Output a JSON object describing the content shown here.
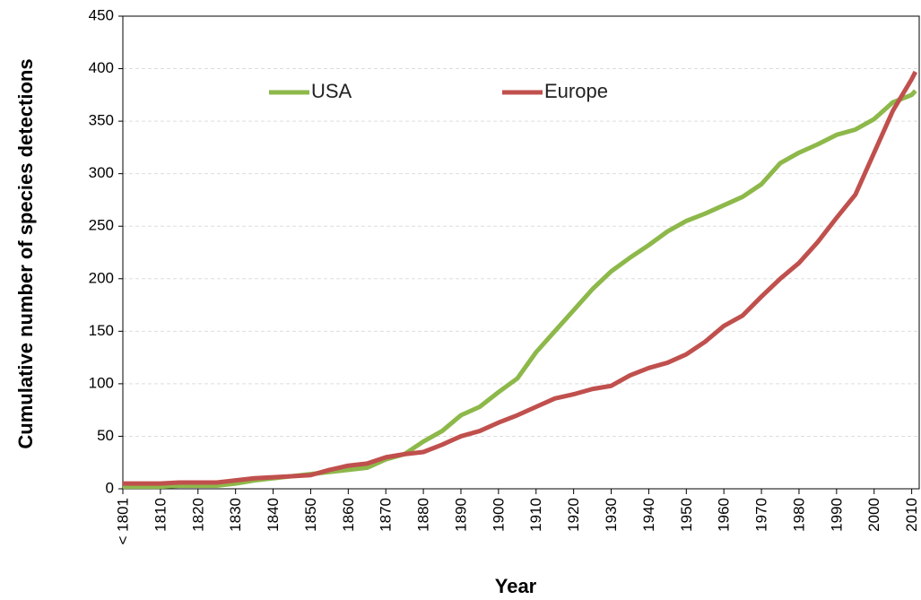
{
  "chart_data": {
    "type": "line",
    "x_label": "Year",
    "y_label": "Cumulative number of species detections",
    "x": [
      1800,
      1805,
      1810,
      1815,
      1820,
      1825,
      1830,
      1835,
      1840,
      1845,
      1850,
      1855,
      1860,
      1865,
      1870,
      1875,
      1880,
      1885,
      1890,
      1895,
      1900,
      1905,
      1910,
      1915,
      1920,
      1925,
      1930,
      1935,
      1940,
      1945,
      1950,
      1955,
      1960,
      1965,
      1970,
      1975,
      1980,
      1985,
      1990,
      1995,
      2000,
      2005,
      2010,
      2011
    ],
    "series": [
      {
        "name": "USA",
        "color": "#8db84a",
        "values": [
          2,
          2,
          2,
          3,
          3,
          3,
          5,
          8,
          10,
          12,
          14,
          16,
          18,
          20,
          28,
          33,
          45,
          55,
          70,
          78,
          92,
          105,
          130,
          150,
          170,
          190,
          207,
          220,
          232,
          245,
          255,
          262,
          270,
          278,
          290,
          310,
          320,
          328,
          337,
          342,
          352,
          368,
          375,
          379
        ]
      },
      {
        "name": "Europe",
        "color": "#c0504d",
        "values": [
          5,
          5,
          5,
          6,
          6,
          6,
          8,
          10,
          11,
          12,
          13,
          18,
          22,
          24,
          30,
          33,
          35,
          42,
          50,
          55,
          63,
          70,
          78,
          86,
          90,
          95,
          98,
          108,
          115,
          120,
          128,
          140,
          155,
          165,
          183,
          200,
          215,
          235,
          258,
          280,
          320,
          360,
          390,
          397
        ]
      }
    ],
    "xlim": [
      1800,
      2012
    ],
    "xticks": [
      {
        "value": 1800,
        "label": "< 1801"
      },
      1810,
      1820,
      1830,
      1840,
      1850,
      1860,
      1870,
      1880,
      1890,
      1900,
      1910,
      1920,
      1930,
      1940,
      1950,
      1960,
      1970,
      1980,
      1990,
      2000,
      2010
    ],
    "ylim": [
      0,
      450
    ],
    "yticks": [
      0,
      50,
      100,
      150,
      200,
      250,
      300,
      350,
      400,
      450
    ],
    "grid": true
  }
}
